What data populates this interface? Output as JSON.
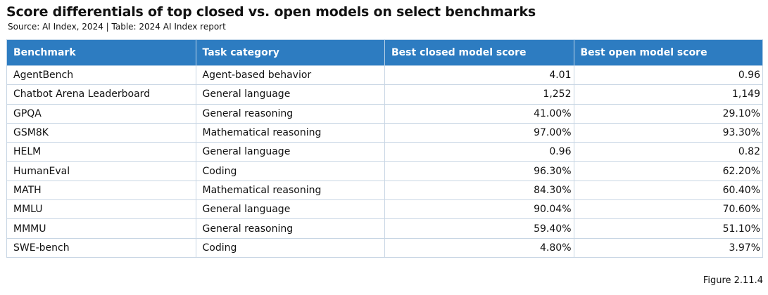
{
  "header": {
    "title": "Score differentials of top closed vs. open models on select benchmarks",
    "subtitle": "Source: AI Index, 2024 | Table: 2024 AI Index report"
  },
  "table": {
    "columns": [
      "Benchmark",
      "Task category",
      "Best closed model score",
      "Best open model score"
    ],
    "rows": [
      [
        "AgentBench",
        "Agent-based behavior",
        "4.01",
        "0.96"
      ],
      [
        "Chatbot Arena Leaderboard",
        "General language",
        "1,252",
        "1,149"
      ],
      [
        "GPQA",
        "General reasoning",
        "41.00%",
        "29.10%"
      ],
      [
        "GSM8K",
        "Mathematical reasoning",
        "97.00%",
        "93.30%"
      ],
      [
        "HELM",
        "General language",
        "0.96",
        "0.82"
      ],
      [
        "HumanEval",
        "Coding",
        "96.30%",
        "62.20%"
      ],
      [
        "MATH",
        "Mathematical reasoning",
        "84.30%",
        "60.40%"
      ],
      [
        "MMLU",
        "General language",
        "90.04%",
        "70.60%"
      ],
      [
        "MMMU",
        "General reasoning",
        "59.40%",
        "51.10%"
      ],
      [
        "SWE-bench",
        "Coding",
        "4.80%",
        "3.97%"
      ]
    ]
  },
  "footer": {
    "figure": "Figure 2.11.4"
  }
}
